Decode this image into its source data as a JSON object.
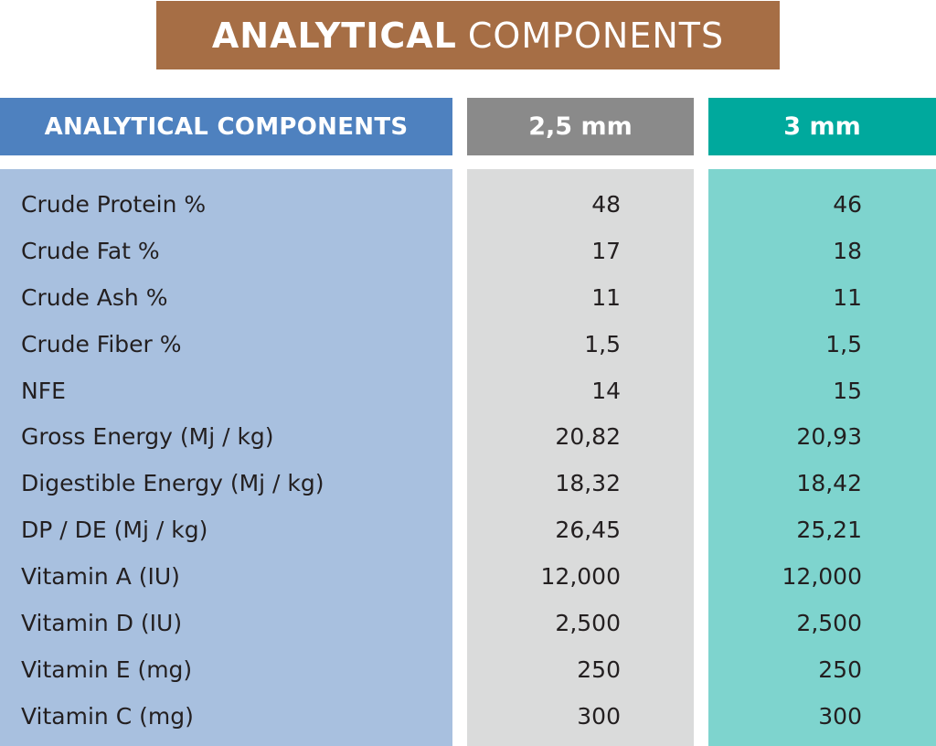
{
  "banner": {
    "title_bold": "ANALYTICAL",
    "title_light": "COMPONENTS",
    "color": "#A66E45"
  },
  "table": {
    "headers": {
      "label": "ANALYTICAL COMPONENTS",
      "col_25": "2,5 mm",
      "col_3": "3 mm"
    },
    "colors": {
      "label_header": "#4E81BF",
      "label_body": "#A8C0DF",
      "col_25_header": "#8A8A8A",
      "col_25_body": "#DADBDB",
      "col_3_header": "#00A99D",
      "col_3_body": "#7ED4CE"
    },
    "rows": [
      {
        "label": "Crude Protein %",
        "v25": "48",
        "v3": "46"
      },
      {
        "label": "Crude Fat %",
        "v25": "17",
        "v3": "18"
      },
      {
        "label": "Crude Ash %",
        "v25": "11",
        "v3": "11"
      },
      {
        "label": "Crude Fiber %",
        "v25": "1,5",
        "v3": "1,5"
      },
      {
        "label": "NFE",
        "v25": "14",
        "v3": "15"
      },
      {
        "label": "Gross Energy (Mj / kg)",
        "v25": "20,82",
        "v3": "20,93"
      },
      {
        "label": "Digestible Energy (Mj / kg)",
        "v25": "18,32",
        "v3": "18,42"
      },
      {
        "label": "DP / DE (Mj / kg)",
        "v25": "26,45",
        "v3": "25,21"
      },
      {
        "label": "Vitamin A (IU)",
        "v25": "12,000",
        "v3": "12,000"
      },
      {
        "label": "Vitamin D (IU)",
        "v25": "2,500",
        "v3": "2,500"
      },
      {
        "label": "Vitamin E (mg)",
        "v25": "250",
        "v3": "250"
      },
      {
        "label": "Vitamin C (mg)",
        "v25": "300",
        "v3": "300"
      }
    ]
  }
}
